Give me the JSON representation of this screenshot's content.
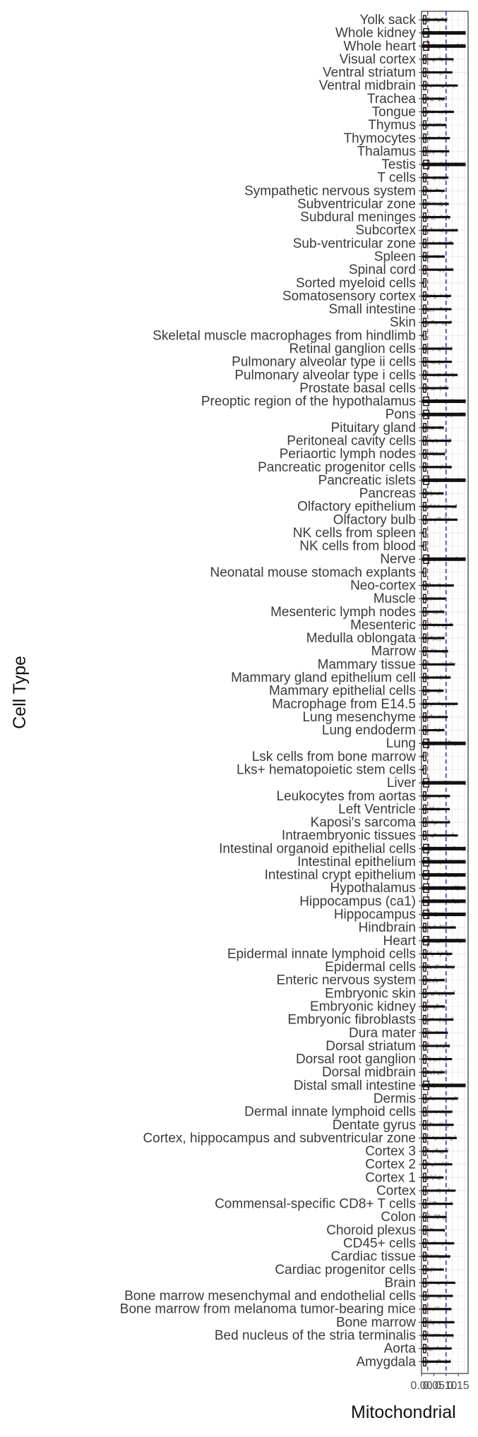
{
  "chart_data": {
    "type": "boxplot",
    "xlabel": "Mitochondrial",
    "ylabel": "Cell Type",
    "xlim": [
      0,
      0.19
    ],
    "xticks": [
      0.0,
      0.05,
      0.1,
      0.15
    ],
    "xtick_labels": [
      "0.00",
      "0.05",
      "0.10",
      "0.15"
    ],
    "grid": true,
    "reference_lines": [
      {
        "x": 0.025,
        "color": "#e8231f",
        "style": "dashed"
      },
      {
        "x": 0.1,
        "color": "#1a1ae6",
        "style": "dashed"
      }
    ],
    "categories": [
      "Amygdala",
      "Aorta",
      "Bed nucleus of the stria terminalis",
      "Bone marrow",
      "Bone marrow from melanoma tumor-bearing mice",
      "Bone marrow mesenchymal and endothelial cells",
      "Brain",
      "Cardiac progenitor cells",
      "Cardiac tissue",
      "CD45+ cells",
      "Choroid plexus",
      "Colon",
      "Commensal-specific CD8+ T cells",
      "Cortex",
      "Cortex 1",
      "Cortex 2",
      "Cortex 3",
      "Cortex, hippocampus and subventricular zone",
      "Dentate gyrus",
      "Dermal innate lymphoid cells",
      "Dermis",
      "Distal small intestine",
      "Dorsal midbrain",
      "Dorsal root ganglion",
      "Dorsal striatum",
      "Dura mater",
      "Embryonic fibroblasts",
      "Embryonic kidney",
      "Embryonic skin",
      "Enteric nervous system",
      "Epidermal cells",
      "Epidermal innate lymphoid cells",
      "Heart",
      "Hindbrain",
      "Hippocampus",
      "Hippocampus (ca1)",
      "Hypothalamus",
      "Intestinal crypt epithelium",
      "Intestinal epithelium",
      "Intestinal organoid epithelial cells",
      "Intraembryonic tissues",
      "Kaposi's sarcoma",
      "Left Ventricle",
      "Leukocytes from aortas",
      "Liver",
      "Lks+ hematopoietic stem cells",
      "Lsk cells from bone marrow",
      "Lung",
      "Lung endoderm",
      "Lung mesenchyme",
      "Macrophage from E14.5",
      "Mammary epithelial cells",
      "Mammary gland epithelium cell",
      "Mammary tissue",
      "Marrow",
      "Medulla oblongata",
      "Mesenteric",
      "Mesenteric lymph nodes",
      "Muscle",
      "Neo-cortex",
      "Neonatal mouse stomach explants",
      "Nerve",
      "NK cells from blood",
      "NK cells from spleen",
      "Olfactory bulb",
      "Olfactory epithelium",
      "Pancreas",
      "Pancreatic islets",
      "Pancreatic progenitor cells",
      "Periaortic lymph nodes",
      "Peritoneal cavity cells",
      "Pituitary gland",
      "Pons",
      "Preoptic region of the hypothalamus",
      "Prostate basal cells",
      "Pulmonary alveolar type i cells",
      "Pulmonary alveolar type ii cells",
      "Retinal ganglion cells",
      "Skeletal muscle macrophages from hindlimb",
      "Skin",
      "Small intestine",
      "Somatosensory cortex",
      "Sorted myeloid cells",
      "Spinal cord",
      "Spleen",
      "Sub-ventricular zone",
      "Subcortex",
      "Subdural meninges",
      "Subventricular zone",
      "Sympathetic nervous system",
      "T cells",
      "Testis",
      "Thalamus",
      "Thymocytes",
      "Thymus",
      "Tongue",
      "Trachea",
      "Ventral midbrain",
      "Ventral striatum",
      "Visual cortex",
      "Whole heart",
      "Whole kidney",
      "Yolk sack"
    ]
  }
}
